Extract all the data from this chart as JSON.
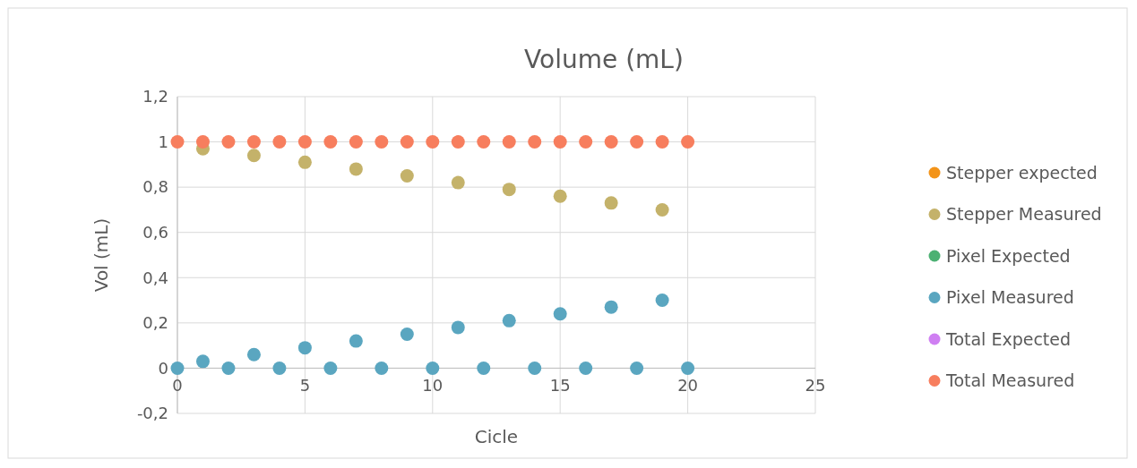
{
  "chart_data": {
    "type": "scatter",
    "title": "Volume (mL)",
    "xlabel": "Cicle",
    "ylabel": "Vol (mL)",
    "x": [
      0,
      1,
      2,
      3,
      4,
      5,
      6,
      7,
      8,
      9,
      10,
      11,
      12,
      13,
      14,
      15,
      16,
      17,
      18,
      19,
      20
    ],
    "series": [
      {
        "name": "Stepper expected",
        "color": "#f39419",
        "values": [
          null,
          null,
          null,
          null,
          null,
          null,
          null,
          null,
          null,
          null,
          null,
          null,
          null,
          null,
          null,
          null,
          null,
          null,
          null,
          null,
          null
        ]
      },
      {
        "name": "Stepper Measured",
        "color": "#c4b26a",
        "values": [
          null,
          0.97,
          null,
          0.94,
          null,
          0.91,
          null,
          0.88,
          null,
          0.85,
          null,
          0.82,
          null,
          0.79,
          null,
          0.76,
          null,
          0.73,
          null,
          0.7,
          null
        ]
      },
      {
        "name": "Pixel Expected",
        "color": "#4cb173",
        "values": [
          null,
          null,
          null,
          null,
          null,
          null,
          null,
          null,
          null,
          null,
          null,
          null,
          null,
          null,
          null,
          null,
          null,
          null,
          null,
          null,
          null
        ]
      },
      {
        "name": "Pixel Measured",
        "color": "#5aa6c0",
        "values": [
          0,
          0.03,
          0,
          0.06,
          0,
          0.09,
          0,
          0.12,
          0,
          0.15,
          0,
          0.18,
          0,
          0.21,
          0,
          0.24,
          0,
          0.27,
          0,
          0.3,
          0
        ]
      },
      {
        "name": "Total Expected",
        "color": "#cf7ff2",
        "values": [
          null,
          null,
          null,
          null,
          null,
          null,
          null,
          null,
          null,
          null,
          null,
          null,
          null,
          null,
          null,
          null,
          null,
          null,
          null,
          null,
          null
        ]
      },
      {
        "name": "Total Measured",
        "color": "#f77e5e",
        "values": [
          1,
          1,
          1,
          1,
          1,
          1,
          1,
          1,
          1,
          1,
          1,
          1,
          1,
          1,
          1,
          1,
          1,
          1,
          1,
          1,
          1
        ]
      }
    ],
    "xlim": [
      0,
      25
    ],
    "xticks": [
      0,
      5,
      10,
      15,
      20,
      25
    ],
    "ylim": [
      -0.2,
      1.2
    ],
    "yticks": [
      {
        "value": -0.2,
        "label": "-0,2"
      },
      0,
      {
        "value": 0.2,
        "label": "0,2"
      },
      {
        "value": 0.4,
        "label": "0,4"
      },
      {
        "value": 0.6,
        "label": "0,6"
      },
      {
        "value": 0.8,
        "label": "0,8"
      },
      1,
      {
        "value": 1.2,
        "label": "1,2"
      }
    ],
    "grid": true,
    "legend": "right",
    "marker": "circle"
  }
}
